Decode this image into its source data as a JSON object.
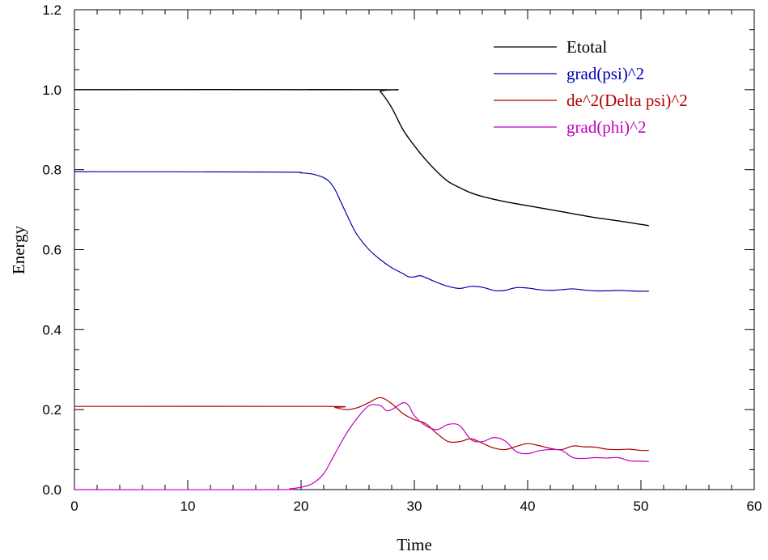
{
  "chart_data": {
    "type": "line",
    "title": "",
    "xlabel": "Time",
    "ylabel": "Energy",
    "xlim": [
      0,
      60
    ],
    "ylim": [
      0,
      1.2
    ],
    "x_ticks": [
      0,
      10,
      20,
      30,
      40,
      50,
      60
    ],
    "x_tick_labels": [
      "0",
      "10",
      "20",
      "30",
      "40",
      "50",
      "60"
    ],
    "y_ticks": [
      0,
      0.2,
      0.4,
      0.6,
      0.8,
      1.0,
      1.2
    ],
    "y_tick_labels": [
      "0.0",
      "0.2",
      "0.4",
      "0.6",
      "0.8",
      "1.0",
      "1.2"
    ],
    "grid": false,
    "legend_position": "top-right",
    "series": [
      {
        "name": "Etotal",
        "color": "#000000",
        "points": [
          [
            0,
            1.0
          ],
          [
            26.5,
            1.0
          ],
          [
            27,
            0.995
          ],
          [
            28,
            0.955
          ],
          [
            29,
            0.9
          ],
          [
            30,
            0.86
          ],
          [
            31,
            0.825
          ],
          [
            32,
            0.795
          ],
          [
            33,
            0.77
          ],
          [
            34,
            0.755
          ],
          [
            35,
            0.742
          ],
          [
            36,
            0.733
          ],
          [
            38,
            0.72
          ],
          [
            40,
            0.71
          ],
          [
            42,
            0.7
          ],
          [
            44,
            0.69
          ],
          [
            46,
            0.68
          ],
          [
            48,
            0.672
          ],
          [
            50,
            0.663
          ],
          [
            50.7,
            0.66
          ]
        ]
      },
      {
        "name": "grad(psi)^2",
        "color": "#0000b0",
        "points": [
          [
            0,
            0.795
          ],
          [
            18,
            0.794
          ],
          [
            20,
            0.792
          ],
          [
            21,
            0.789
          ],
          [
            22,
            0.78
          ],
          [
            22.5,
            0.77
          ],
          [
            23,
            0.75
          ],
          [
            23.5,
            0.72
          ],
          [
            24,
            0.69
          ],
          [
            24.5,
            0.66
          ],
          [
            25,
            0.635
          ],
          [
            26,
            0.6
          ],
          [
            27,
            0.575
          ],
          [
            28,
            0.555
          ],
          [
            29,
            0.54
          ],
          [
            29.5,
            0.532
          ],
          [
            30,
            0.532
          ],
          [
            30.5,
            0.535
          ],
          [
            31,
            0.53
          ],
          [
            32,
            0.518
          ],
          [
            33,
            0.508
          ],
          [
            34,
            0.503
          ],
          [
            35,
            0.508
          ],
          [
            36,
            0.506
          ],
          [
            37,
            0.498
          ],
          [
            37.5,
            0.497
          ],
          [
            38,
            0.498
          ],
          [
            39,
            0.505
          ],
          [
            40,
            0.504
          ],
          [
            41,
            0.5
          ],
          [
            42,
            0.498
          ],
          [
            43,
            0.5
          ],
          [
            44,
            0.502
          ],
          [
            45,
            0.499
          ],
          [
            46,
            0.497
          ],
          [
            47,
            0.497
          ],
          [
            48,
            0.498
          ],
          [
            49,
            0.497
          ],
          [
            50,
            0.496
          ],
          [
            50.7,
            0.496
          ]
        ]
      },
      {
        "name": "de^2(Delta psi)^2",
        "color": "#b00000",
        "points": [
          [
            0,
            0.208
          ],
          [
            22,
            0.208
          ],
          [
            23,
            0.205
          ],
          [
            24,
            0.2
          ],
          [
            25,
            0.205
          ],
          [
            26,
            0.218
          ],
          [
            27,
            0.23
          ],
          [
            28,
            0.215
          ],
          [
            29,
            0.19
          ],
          [
            30,
            0.175
          ],
          [
            31,
            0.165
          ],
          [
            32,
            0.14
          ],
          [
            33,
            0.12
          ],
          [
            34,
            0.12
          ],
          [
            35,
            0.127
          ],
          [
            36,
            0.116
          ],
          [
            37,
            0.104
          ],
          [
            38,
            0.1
          ],
          [
            39,
            0.108
          ],
          [
            40,
            0.115
          ],
          [
            41,
            0.11
          ],
          [
            42,
            0.103
          ],
          [
            43,
            0.1
          ],
          [
            44,
            0.109
          ],
          [
            45,
            0.107
          ],
          [
            46,
            0.106
          ],
          [
            47,
            0.101
          ],
          [
            48,
            0.1
          ],
          [
            49,
            0.101
          ],
          [
            50,
            0.098
          ],
          [
            50.7,
            0.098
          ]
        ]
      },
      {
        "name": "grad(phi)^2",
        "color": "#c000c0",
        "points": [
          [
            0,
            0
          ],
          [
            18,
            0
          ],
          [
            19,
            0.002
          ],
          [
            20,
            0.006
          ],
          [
            21,
            0.015
          ],
          [
            22,
            0.04
          ],
          [
            23,
            0.09
          ],
          [
            24,
            0.14
          ],
          [
            25,
            0.18
          ],
          [
            26,
            0.21
          ],
          [
            27,
            0.21
          ],
          [
            27.5,
            0.198
          ],
          [
            28,
            0.2
          ],
          [
            29,
            0.217
          ],
          [
            29.5,
            0.21
          ],
          [
            30,
            0.185
          ],
          [
            31,
            0.16
          ],
          [
            32,
            0.15
          ],
          [
            33,
            0.163
          ],
          [
            34,
            0.16
          ],
          [
            35,
            0.125
          ],
          [
            36,
            0.12
          ],
          [
            37,
            0.13
          ],
          [
            38,
            0.122
          ],
          [
            39,
            0.095
          ],
          [
            40,
            0.09
          ],
          [
            41,
            0.097
          ],
          [
            42,
            0.1
          ],
          [
            43,
            0.098
          ],
          [
            44,
            0.08
          ],
          [
            45,
            0.078
          ],
          [
            46,
            0.08
          ],
          [
            47,
            0.079
          ],
          [
            48,
            0.08
          ],
          [
            49,
            0.072
          ],
          [
            50,
            0.071
          ],
          [
            50.7,
            0.07
          ]
        ]
      }
    ]
  }
}
